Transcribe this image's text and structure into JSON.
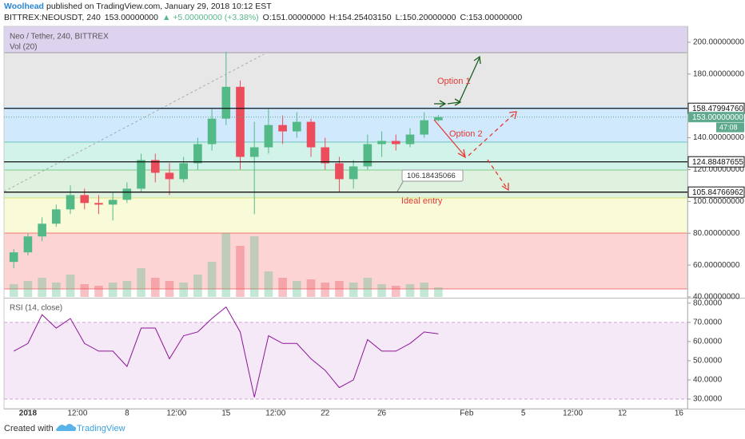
{
  "header": {
    "author": "Woolhead",
    "published": "published on TradingView.com, January 29, 2018 10:12 EST",
    "symbol": "BITTREX:NEOUSDT, 240",
    "price": "153.00000000",
    "change": "▲ +5.00000000 (+3.38%)",
    "ohlc": [
      "O:151.00000000",
      "H:154.25403150",
      "L:150.20000000",
      "C:153.00000000"
    ]
  },
  "footer": {
    "created": "Created with",
    "brand": "TradingView"
  },
  "chart_data": [
    {
      "type": "candlestick",
      "title": "Neo / Tether, 240, BITTREX",
      "volume_label": "Vol (20)",
      "up_color": "#53b987",
      "down_color": "#eb4d5c",
      "x": [
        0,
        1,
        2,
        3,
        4,
        5,
        6,
        7,
        8,
        9,
        10,
        11,
        12,
        13,
        14,
        15,
        16,
        17,
        18,
        19,
        20,
        21,
        22,
        23,
        24,
        25,
        26,
        27,
        28,
        29,
        30
      ],
      "open": [
        62,
        68,
        78,
        86,
        95,
        104,
        99,
        98,
        101,
        108,
        126,
        118,
        114,
        124,
        136,
        152,
        172,
        128,
        134,
        148,
        144,
        150,
        134,
        124,
        114,
        122,
        136,
        138,
        136,
        142,
        151
      ],
      "high": [
        70,
        80,
        90,
        98,
        110,
        108,
        104,
        106,
        112,
        130,
        130,
        124,
        128,
        140,
        158,
        194,
        176,
        150,
        158,
        154,
        156,
        152,
        140,
        128,
        126,
        142,
        144,
        142,
        146,
        156,
        154.25
      ],
      "low": [
        58,
        66,
        75,
        84,
        92,
        95,
        92,
        88,
        99,
        106,
        112,
        104,
        112,
        120,
        132,
        148,
        120,
        92,
        130,
        136,
        140,
        128,
        120,
        106,
        108,
        120,
        128,
        132,
        134,
        140,
        150.2
      ],
      "close": [
        68,
        78,
        86,
        95,
        104,
        99,
        98,
        101,
        108,
        126,
        118,
        114,
        124,
        136,
        152,
        172,
        128,
        134,
        148,
        144,
        150,
        134,
        124,
        114,
        122,
        136,
        138,
        136,
        142,
        151,
        153
      ],
      "volume": [
        8,
        10,
        12,
        9,
        14,
        8,
        7,
        9,
        10,
        18,
        12,
        10,
        9,
        14,
        22,
        40,
        32,
        38,
        16,
        12,
        10,
        11,
        9,
        10,
        9,
        12,
        8,
        7,
        8,
        9,
        6
      ],
      "xlim": [
        -0.69,
        47.6
      ],
      "xticks": [
        {
          "value": 1,
          "label": "2018"
        },
        {
          "value": 4.5,
          "label": "12:00"
        },
        8,
        {
          "value": 11.5,
          "label": "12:00"
        },
        15,
        {
          "value": 18.5,
          "label": "12:00"
        },
        22,
        26,
        {
          "value": 32,
          "label": "Feb"
        },
        {
          "value": 36,
          "label": "5"
        },
        {
          "value": 39.5,
          "label": "12:00"
        },
        {
          "value": 43,
          "label": "12"
        },
        {
          "value": 47,
          "label": "16"
        }
      ],
      "ylim": [
        40,
        210
      ],
      "yticks": [
        {
          "value": 40,
          "label": "40.00000000"
        },
        {
          "value": 60,
          "label": "60.00000000"
        },
        {
          "value": 80,
          "label": "80.00000000"
        },
        {
          "value": 100,
          "label": "100.00000000"
        },
        {
          "value": 120,
          "label": "120.00000000"
        },
        {
          "value": 140,
          "label": "140.00000000"
        },
        {
          "value": 180,
          "label": "180.00000000"
        },
        {
          "value": 200,
          "label": "200.00000000"
        }
      ],
      "hlines": [
        {
          "value": 158.4799476,
          "label": "158.47994760"
        },
        {
          "value": 124.88487655,
          "label": "124.88487655"
        },
        {
          "value": 105.84766962,
          "label": "105.84766962"
        }
      ],
      "last_price": {
        "value": 153,
        "label": "153.00000000"
      },
      "countdown": "47:08",
      "callout": {
        "value": 106.18435066,
        "label": "106.18435066"
      },
      "annotations": [
        "Option 1",
        "Option 2",
        "Ideal entry"
      ]
    },
    {
      "type": "line",
      "title": "RSI (14, close)",
      "color": "#8e1599",
      "x": [
        0,
        1,
        2,
        3,
        4,
        5,
        6,
        7,
        8,
        9,
        10,
        11,
        12,
        13,
        14,
        15,
        16,
        17,
        18,
        19,
        20,
        21,
        22,
        23,
        24,
        25,
        26,
        27,
        28,
        29,
        30
      ],
      "values": [
        55,
        59,
        74,
        67,
        72,
        59,
        55,
        55,
        47,
        67,
        67,
        51,
        63,
        65,
        72,
        78,
        65,
        31,
        63,
        59,
        59,
        51,
        45,
        36,
        40,
        61,
        55,
        55,
        59,
        65,
        64
      ],
      "ylim": [
        25,
        82
      ],
      "yticks": [
        {
          "value": 30,
          "label": "30.0000"
        },
        {
          "value": 40,
          "label": "40.0000"
        },
        {
          "value": 50,
          "label": "50.0000"
        },
        {
          "value": 60,
          "label": "60.0000"
        },
        {
          "value": 70,
          "label": "70.0000"
        },
        {
          "value": 80,
          "label": "80.0000"
        }
      ],
      "bands": [
        30,
        70
      ]
    }
  ]
}
